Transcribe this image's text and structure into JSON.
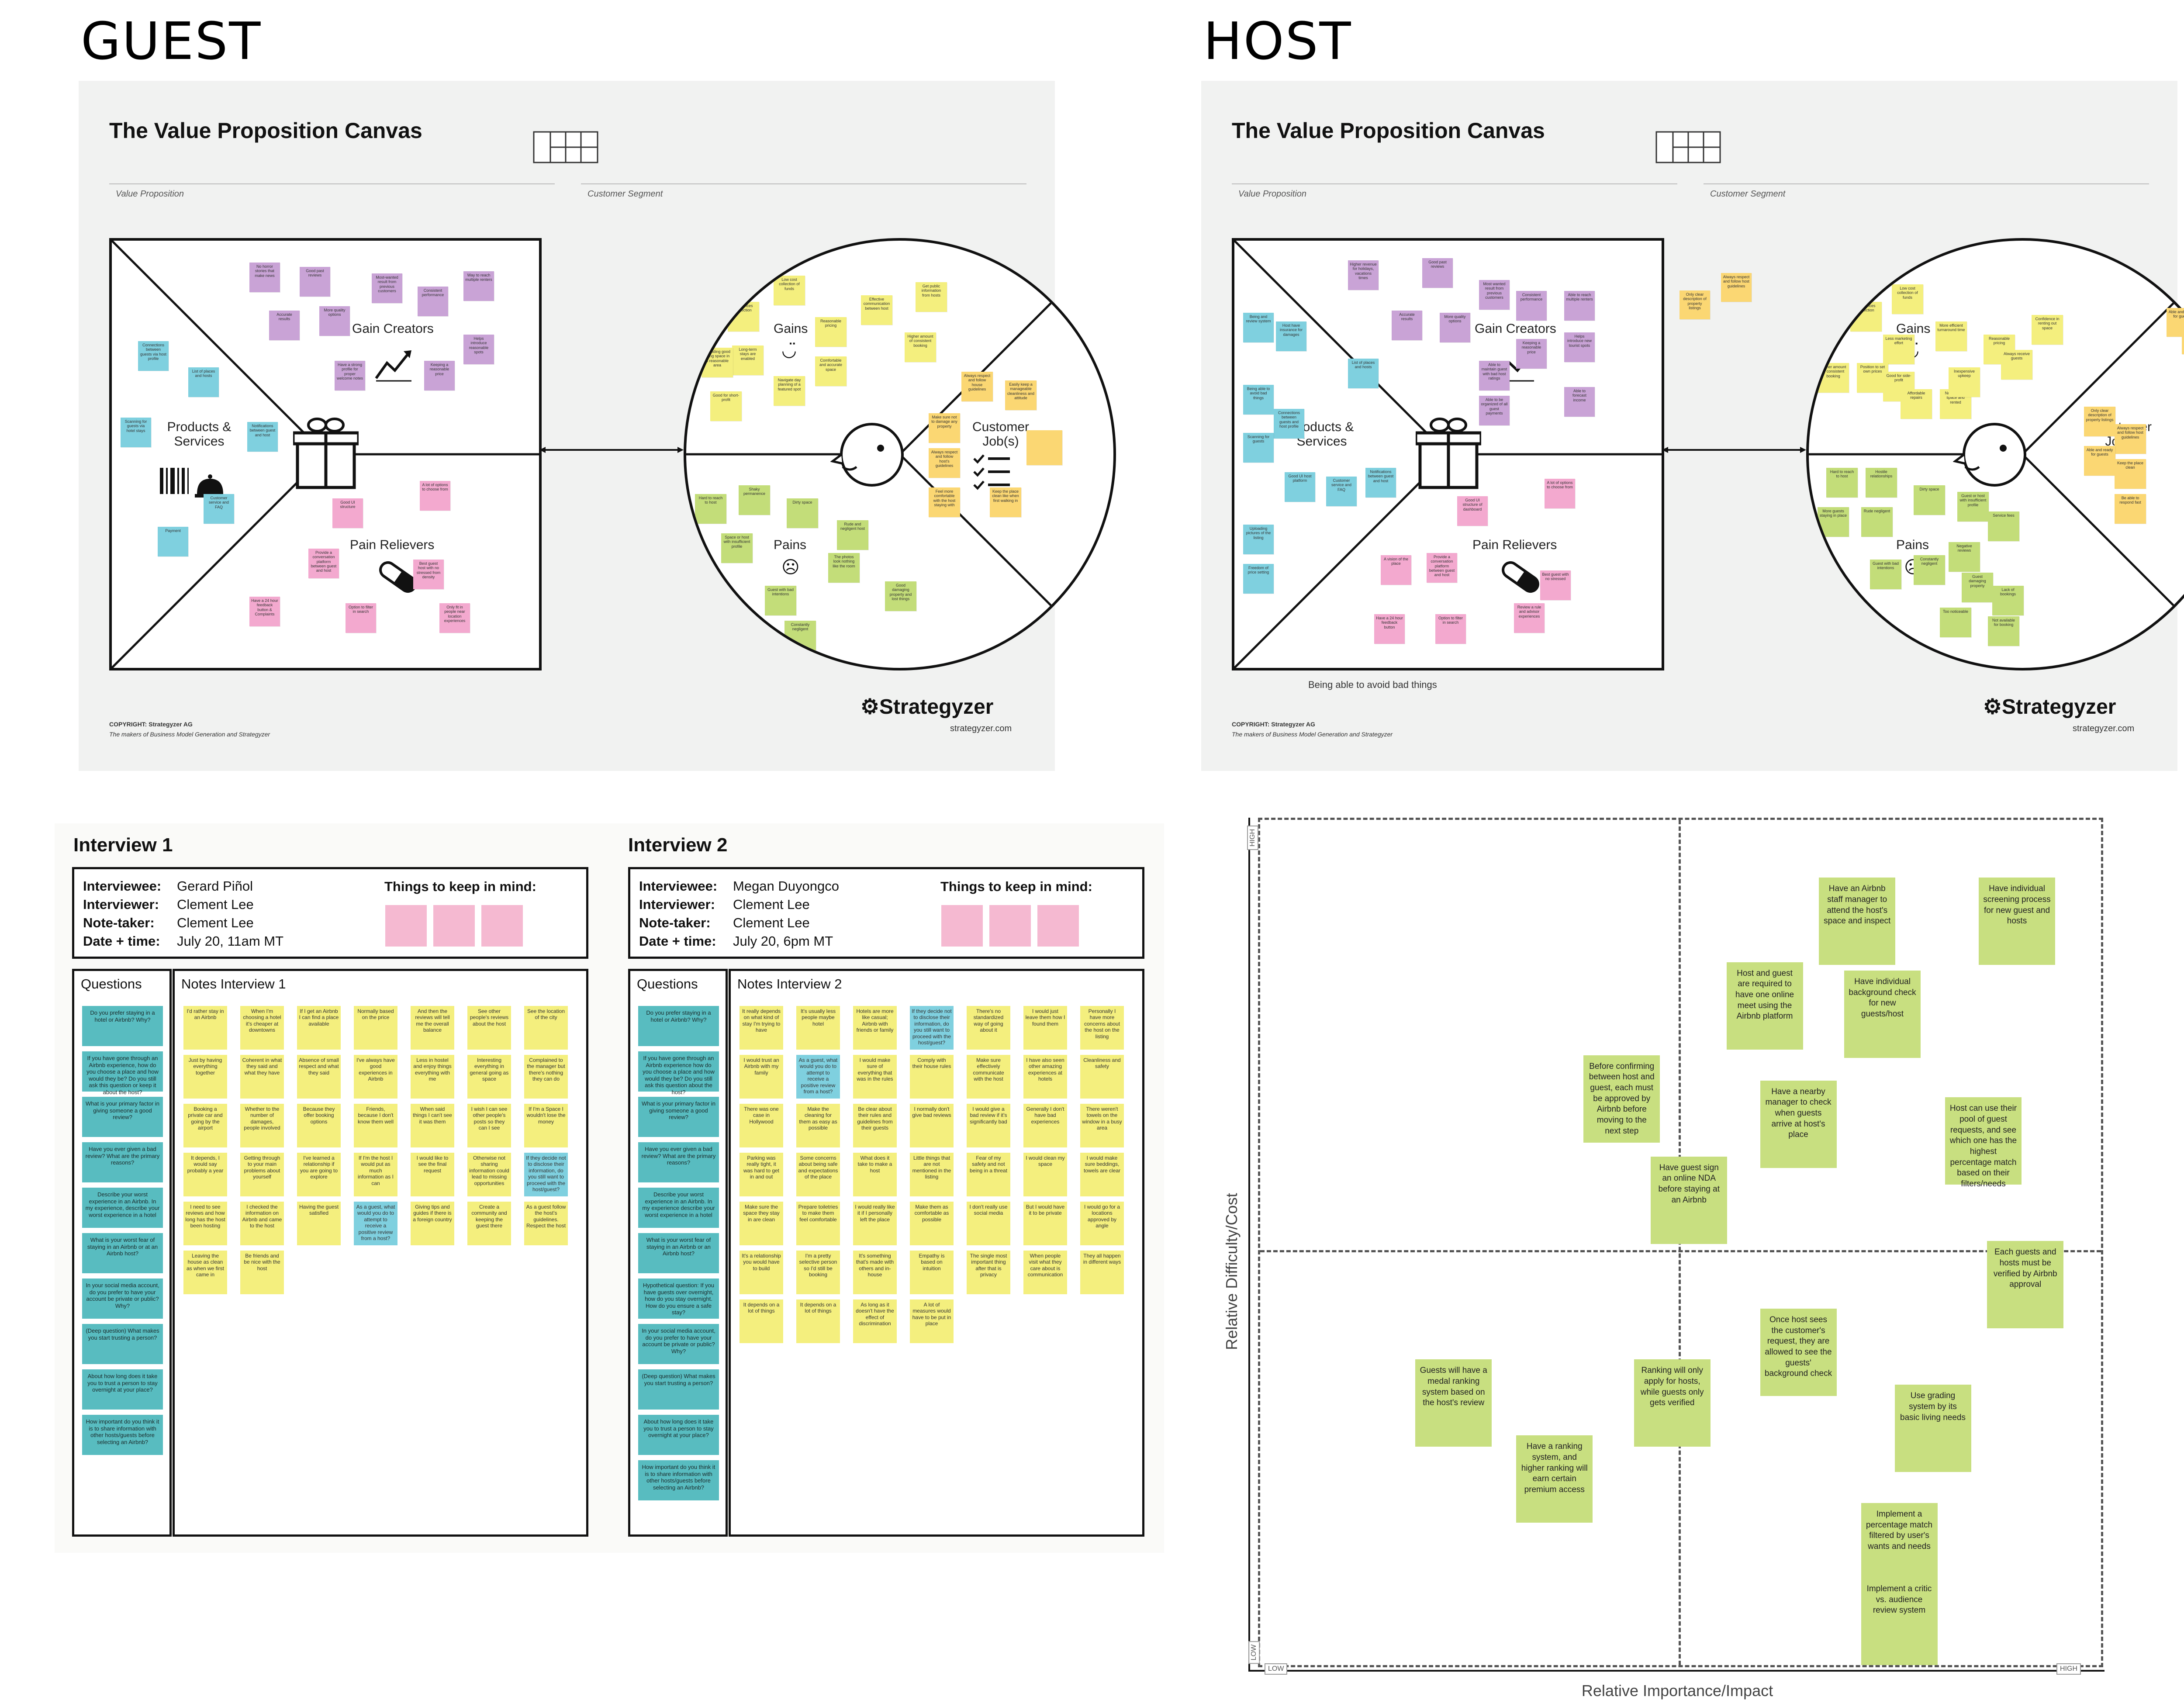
{
  "headings": {
    "guest": "GUEST",
    "host": "HOST"
  },
  "vpc": {
    "title": "The Value Proposition Canvas",
    "value_proposition": "Value Proposition",
    "customer_segment": "Customer Segment",
    "gain_creators": "Gain Creators",
    "products_services": "Products & Services",
    "pain_relievers": "Pain Relievers",
    "gains": "Gains",
    "customer_jobs": "Customer Job(s)",
    "pains": "Pains",
    "copyright": "COPYRIGHT: Strategyzer AG",
    "makers": "The makers of Business Model Generation and Strategyzer",
    "brand": "Strategyzer",
    "url": "strategyzer.com",
    "host_caption": "Being able to avoid bad things"
  },
  "guest_stickies": {
    "gain": [
      "No horror stories that make news",
      "Good past reviews",
      "Accurate results",
      "More quality options",
      "Most-wanted result from previous customers",
      "Consistent performance",
      "Way to reach multiple renters",
      "Have a strong profile for proper welcome notes",
      "Keeping a reasonable price",
      "Helps introduce reasonable spots"
    ],
    "product": [
      "Connections between guests via host profile",
      "List of places and hosts",
      "Scanning for guests via hotel stays",
      "Notifications between guest and host",
      "Customer service and FAQ",
      "Payment"
    ],
    "pain_rel": [
      "Good UI structure",
      "A lot of options to choose from",
      "Provide a conversation platform between guest and host",
      "Best guest host with no stressed from density",
      "Have a 24 hour feedback button & Complaints",
      "Option to filter in search",
      "Only fit in people near location experiences"
    ],
    "gains_c": [
      "Low cost collection of funds",
      "Low prices collection",
      "Long-term stays are enabled",
      "Reasonable pricing",
      "Effective communication between host",
      "Get public information from hosts",
      "Providing good living space in a reasonable area",
      "Navigate day planning of a featured spot",
      "Comfortable and accurate space",
      "Higher amount of consistent booking",
      "Good for short-profit"
    ],
    "jobs": [
      "Always respect and follow house guidelines",
      "Easily keep a manageable cleanliness and attitude",
      "Make sure not to damage any property",
      "Always respect and follow host's guidelines",
      "Feel more comfortable with the host staying with",
      "Keep the place clean like when first walking in"
    ],
    "pains_c": [
      "Hard to reach to host",
      "Shaky permanence",
      "Dirty space",
      "Rude and negligent host",
      "Space or host with insufficient profile",
      "The photos look nothing like the room",
      "Guest with bad intentions",
      "Good damaging property and lost things",
      "Constantly negligent"
    ]
  },
  "host_stickies": {
    "gain": [
      "Higher revenue for holidays, vacations times",
      "Good past reviews",
      "Most wanted result from previous customers",
      "Consistent performance",
      "Able to reach multiple renters",
      "Accurate results",
      "More quality options",
      "Able to maintain guest with bad host ratings",
      "Keeping a reasonable price",
      "Helps introduce new tourist spots",
      "Able to be organized of all guest payments",
      "Able to forecast income"
    ],
    "product": [
      "Being and review system",
      "Host have insurance for damages",
      "List of places and hosts",
      "Being able to avoid bad things",
      "Connections between guests and host profile",
      "Scanning for guests",
      "Good UI host platform",
      "Customer service and FAQ",
      "Notifications between guest and host",
      "Uploading pictures of the listing",
      "Freedom of price setting"
    ],
    "pain_rel": [
      "Good UI structure of dashboard",
      "A lot of options to choose from",
      "A vision of the place",
      "Provide a conversation platform between guest and host",
      "Best guest with no stressed",
      "Have a 24 hour feedback button",
      "Option to filter in search",
      "Review a rule and advisor experiences"
    ],
    "gains_c": [
      "Low cost collection of funds",
      "Low prices collection",
      "Less marketing effort",
      "More efficient turnaround time",
      "Reasonable pricing",
      "Confidence in renting out space",
      "Higher amount of consistent booking",
      "Position to set own prices",
      "Not needing space and rented",
      "Good for side-profit",
      "Affordable repairs",
      "Inexpensive upkeep",
      "Always receive guests"
    ],
    "jobs": [
      "Only clear description of property listings",
      "Always respect and follow host guidelines",
      "Able and ready for guests",
      "Keep the place clean",
      "Be able to respond fast"
    ],
    "pains_c": [
      "Hard to reach to host",
      "Hostile relationships",
      "Dirty space",
      "More guests staying in place",
      "Rude negligent",
      "Guest or host with insufficient profile",
      "Service fees",
      "Negative reviews",
      "Guest with bad intentions",
      "Constantly negligent",
      "Guest damaging property",
      "Lack of bookings",
      "Too noticeable",
      "Not available for booking"
    ]
  },
  "interview1": {
    "title": "Interview 1",
    "interviewee_label": "Interviewee:",
    "interviewee": "Gerard Piñol",
    "interviewer_label": "Interviewer:",
    "interviewer": "Clement Lee",
    "notetaker_label": "Note-taker:",
    "notetaker": "Clement Lee",
    "date_label": "Date + time:",
    "date": "July 20, 11am MT",
    "keep": "Things to keep in mind:",
    "questions_head": "Questions",
    "notes_head": "Notes Interview 1",
    "notes": [
      "I'd rather stay in an Airbnb",
      "When I'm choosing a hotel it's cheaper at downtowns",
      "If I get an Airbnb I can find a place available",
      "Normally based on the price",
      "And then the reviews will tell me the overall balance",
      "See other people's reviews about the host",
      "See the location of the city",
      "Just by having everything together",
      "Coherent in what they said and what they have",
      "Absence of small respect and what they said",
      "I've always have good experiences in Airbnb",
      "Less in hostel and enjoy things everything with me",
      "Interesting everything in general going as space",
      "Complained to the manager but there's nothing they can do",
      "Booking a private car and going by the airport",
      "Whether to the number of damages, people involved",
      "Because they offer booking options",
      "Friends, because I don't know them well",
      "When said things I can't see it was them",
      "I wish I can see other people's posts so they can I see",
      "If I'm a Space I wouldn't lose the money",
      "It depends, I would say probably a year",
      "Getting through to your main problems about yourself",
      "I've learned a relationship if you are going to explore",
      "If I'm the host I would put as much information as I can",
      "I would like to see the final request",
      "Otherwise not sharing information could lead to missing opportunities",
      "If they decide not to disclose their information, do you still want to proceed with the host/guest?",
      "I need to see reviews and how long has the host been hosting",
      "I checked the information on Airbnb and came to the host",
      "Having the guest satisfied",
      "As a guest, what would you do to attempt to receive a positive review from a host?",
      "Giving tips and guides if there is a foreign country",
      "Create a community and keeping the guest there",
      "As a guest follow the host's guidelines. Respect the host",
      "Leaving the house as clean as when we first came in",
      "Be friends and be nice with the host"
    ]
  },
  "interview2": {
    "title": "Interview 2",
    "interviewee_label": "Interviewee:",
    "interviewee": "Megan Duyongco",
    "interviewer_label": "Interviewer:",
    "interviewer": "Clement Lee",
    "notetaker_label": "Note-taker:",
    "notetaker": "Clement Lee",
    "date_label": "Date + time:",
    "date": "July 20, 6pm MT",
    "keep": "Things to keep in mind:",
    "questions_head": "Questions",
    "notes_head": "Notes Interview 2",
    "notes": [
      "It really depends on what kind of stay I'm trying to have",
      "It's usually less people maybe hotel",
      "Hotels are more like casual; Airbnb with friends or family",
      "If they decide not to disclose their information, do you still want to proceed with the host/guest?",
      "There's no standardized way of going about it",
      "I would just leave them how I found them",
      "Personally I have more concerns about the host on the listing",
      "I would trust an Airbnb with my family",
      "As a guest, what would you do to attempt to receive a positive review from a host?",
      "I would make sure of everything that was in the rules",
      "Comply with their house rules",
      "Make sure effectively communicate with the host",
      "I have also seen other amazing experiences at hotels",
      "Cleanliness and safety",
      "There was one case in Hollywood",
      "Make the cleaning for them as easy as possible",
      "Be clear about their rules and guidelines from their guests",
      "I normally don't give bad reviews",
      "I would give a bad review if it's significantly bad",
      "Generally I don't have bad experiences",
      "There weren't towels on the window in a busy area",
      "Parking was really tight, it was hard to get in and out",
      "Some concerns about being safe and expectations of the place",
      "What does it take to make a host",
      "Little things that are not mentioned in the listing",
      "Fear of my safety and not being in a threat",
      "I would clean my space",
      "I would make sure beddings, towels are clear",
      "Make sure the space they stay in are clean",
      "Prepare toiletries to make them feel comfortable",
      "I would really like it if I personally left the place",
      "Make them as comfortable as possible",
      "I don't really use social media",
      "But I would have it to be private",
      "I would go for a locations approved by angle",
      "It's a relationship you would have to build",
      "I'm a pretty selective person so I'd still be booking",
      "It's something that's made with others and in-house",
      "Empathy is based on intuition",
      "The single most important thing after that is privacy",
      "When people visit what they care about is communication",
      "They all happen in different ways",
      "It depends on a lot of things",
      "It depends on a lot of things",
      "As long as it doesn't have the effect of discrimination",
      "A lot of measures would have to be put in place"
    ]
  },
  "questions": [
    "Do you prefer staying in a hotel or Airbnb? Why?",
    "If you have gone through an Airbnb experience, how do you choose a place and how would they be? Do you still ask this question or keep it about the host?",
    "What is your primary factor in giving someone a good review?",
    "Have you ever given a bad review? What are the primary reasons?",
    "Describe your worst experience in an Airbnb. In my experience, describe your worst experience in a hotel",
    "What is your worst fear of staying in an Airbnb or at an Airbnb host?",
    "In your social media account, do you prefer to have your account be private or public? Why?",
    "(Deep question) What makes you start trusting a person?",
    "About how long does it take you to trust a person to stay overnight at your place?",
    "How important do you think it is to share information with other hosts/guests before selecting an Airbnb?"
  ],
  "questions2": [
    "Do you prefer staying in a hotel or Airbnb? Why?",
    "If you have gone through an Airbnb experience how do you choose a place and how would they be? Do you still ask this question about the host?",
    "What is your primary factor in giving someone a good review?",
    "Have you ever given a bad review? What are the primary reasons?",
    "Describe your worst experience in an Airbnb. In my experience describe your worst experience in a hotel",
    "What is your worst fear of staying in an Airbnb or an Airbnb host?",
    "Hypothetical question: If you have guests over overnight, how do you stay overnight. How do you ensure a safe stay?",
    "In your social media account, do you prefer to have your account be private or public? Why?",
    "(Deep question) What makes you start trusting a person?",
    "About how long does it take you to trust a person to stay overnight at your place?",
    "How important do you think it is to share information with other hosts/guests before selecting an Airbnb?"
  ],
  "matrix": {
    "y_label": "Relative Difficulty/Cost",
    "x_label": "Relative Importance/Impact",
    "high_y": "HIGH",
    "low_y": "LOW",
    "low_x": "LOW",
    "high_x": "HIGH",
    "items": [
      {
        "text": "Have an Airbnb staff manager to attend the host's space and inspect",
        "importance": 0.71,
        "difficulty": 0.88
      },
      {
        "text": "Have individual screening process for new guest and hosts",
        "importance": 0.9,
        "difficulty": 0.88
      },
      {
        "text": "Host and guest are required to have one online meet using the Airbnb platform",
        "importance": 0.6,
        "difficulty": 0.78
      },
      {
        "text": "Have individual background check for new guests/host",
        "importance": 0.74,
        "difficulty": 0.77
      },
      {
        "text": "Before confirming between host and guest, each must be approved by Airbnb before moving to the next step",
        "importance": 0.43,
        "difficulty": 0.67
      },
      {
        "text": "Have a nearby manager to check when guests arrive at host's place",
        "importance": 0.64,
        "difficulty": 0.64
      },
      {
        "text": "Host can use their pool of guest requests, and see which one has the highest percentage match based on their filters/needs",
        "importance": 0.86,
        "difficulty": 0.62
      },
      {
        "text": "Have guest sign an online NDA before staying at an Airbnb",
        "importance": 0.51,
        "difficulty": 0.55
      },
      {
        "text": "Each guests and hosts must be verified by Airbnb approval",
        "importance": 0.91,
        "difficulty": 0.45
      },
      {
        "text": "Once host sees the customer's request, they are allowed to see the guests' background check",
        "importance": 0.64,
        "difficulty": 0.37
      },
      {
        "text": "Guests will have a medal ranking system based on the host's review",
        "importance": 0.23,
        "difficulty": 0.31
      },
      {
        "text": "Ranking will only apply for hosts, while guests only gets verified",
        "importance": 0.49,
        "difficulty": 0.31
      },
      {
        "text": "Use grading system by its basic living needs",
        "importance": 0.8,
        "difficulty": 0.28
      },
      {
        "text": "Have a ranking system, and higher ranking will earn certain premium access",
        "importance": 0.35,
        "difficulty": 0.22
      },
      {
        "text": "Implement a percentage match filtered by user's wants and needs",
        "importance": 0.76,
        "difficulty": 0.14
      },
      {
        "text": "Implement a critic vs. audience review system",
        "importance": 0.76,
        "difficulty": 0.04
      }
    ]
  },
  "colors": {
    "yellow": "#f4ef7e",
    "orange": "#fbd773",
    "blue": "#7fd0df",
    "purple": "#c9a3d6",
    "pink": "#f3a9cf",
    "green": "#c3dd79",
    "teal": "#58bcc0"
  }
}
